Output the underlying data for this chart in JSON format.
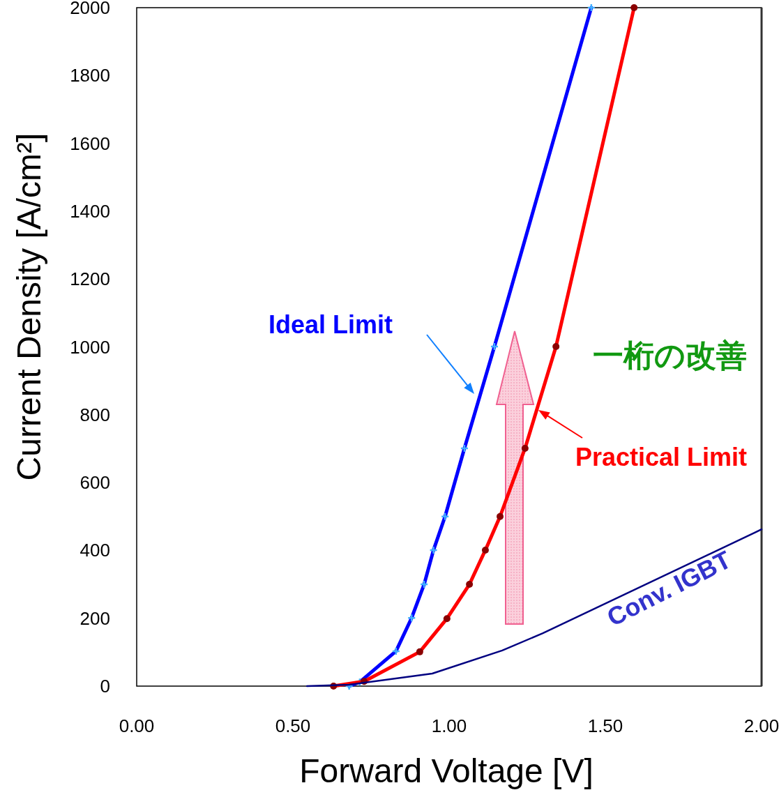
{
  "chart_data": {
    "type": "line",
    "xlabel": "Forward Voltage [V]",
    "ylabel": "Current Density [A/cm²]",
    "xlim": [
      0,
      2
    ],
    "ylim": [
      0,
      2000
    ],
    "xticks": [
      {
        "value": 0,
        "label": "0.00"
      },
      {
        "value": 0.5,
        "label": "0.50"
      },
      {
        "value": 1,
        "label": "1.00"
      },
      {
        "value": 1.5,
        "label": "1.50"
      },
      {
        "value": 2,
        "label": "2.00"
      }
    ],
    "yticks": [
      0,
      200,
      400,
      600,
      800,
      1000,
      1200,
      1400,
      1600,
      1800,
      2000
    ],
    "series": [
      {
        "name": "Ideal Limit",
        "color": "#0000ff",
        "marker": "cross",
        "x": [
          0.68,
          0.714,
          0.83,
          0.88,
          0.92,
          0.95,
          0.987,
          1.049,
          1.145,
          1.455
        ],
        "values": [
          0,
          12,
          103,
          201,
          300,
          401,
          500,
          701,
          1001,
          2000
        ]
      },
      {
        "name": "Practical Limit",
        "color": "#ff0000",
        "marker": "circle",
        "x": [
          0.63,
          0.728,
          0.906,
          0.993,
          1.065,
          1.116,
          1.163,
          1.243,
          1.342,
          1.592
        ],
        "values": [
          0,
          14,
          101,
          199,
          300,
          401,
          500,
          701,
          1001,
          2000
        ]
      },
      {
        "name": "Conv. IGBT",
        "color": "#000080",
        "x": [
          0.545,
          0.68,
          0.946,
          1.17,
          1.3,
          2.0
        ],
        "values": [
          0,
          4,
          37,
          105,
          156,
          462
        ]
      }
    ],
    "annotations": [
      "一桁の改善"
    ]
  }
}
